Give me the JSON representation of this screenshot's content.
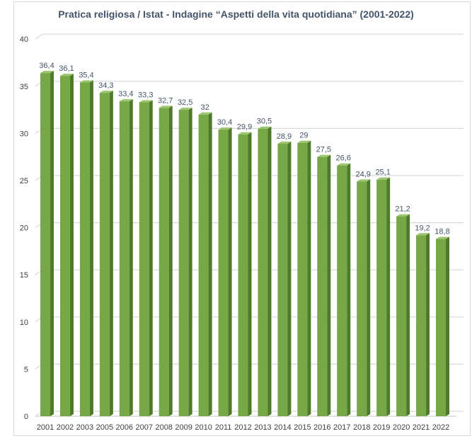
{
  "chart_data": {
    "type": "bar",
    "title": "Pratica religiosa / Istat - Indagine “Aspetti della vita quotidiana” (2001-2022)",
    "xlabel": "",
    "ylabel": "",
    "categories": [
      "2001",
      "2002",
      "2003",
      "2005",
      "2006",
      "2007",
      "2008",
      "2009",
      "2010",
      "2011",
      "2012",
      "2013",
      "2014",
      "2015",
      "2016",
      "2017",
      "2018",
      "2019",
      "2020",
      "2021",
      "2022"
    ],
    "values": [
      36.4,
      36.1,
      35.4,
      34.3,
      33.4,
      33.3,
      32.7,
      32.5,
      32,
      30.4,
      29.9,
      30.5,
      28.9,
      29,
      27.5,
      26.6,
      24.9,
      25.1,
      21.2,
      19.2,
      18.8
    ],
    "data_labels": [
      "36,4",
      "36,1",
      "35,4",
      "34,3",
      "33,4",
      "33,3",
      "32,7",
      "32,5",
      "32",
      "30,4",
      "29,9",
      "30,5",
      "28,9",
      "29",
      "27,5",
      "26,6",
      "24,9",
      "25,1",
      "21,2",
      "19,2",
      "18,8"
    ],
    "ylim": [
      0,
      40
    ],
    "yticks": [
      0,
      5,
      10,
      15,
      20,
      25,
      30,
      35,
      40
    ],
    "grid": true,
    "legend": "none",
    "style": "3d-column",
    "colors": {
      "bar_front": "#77a847",
      "bar_side": "#4e7a2a",
      "bar_top": "#9cc66e",
      "title": "#44546a",
      "gridline": "#d9d9d9",
      "label": "#44546a"
    }
  }
}
